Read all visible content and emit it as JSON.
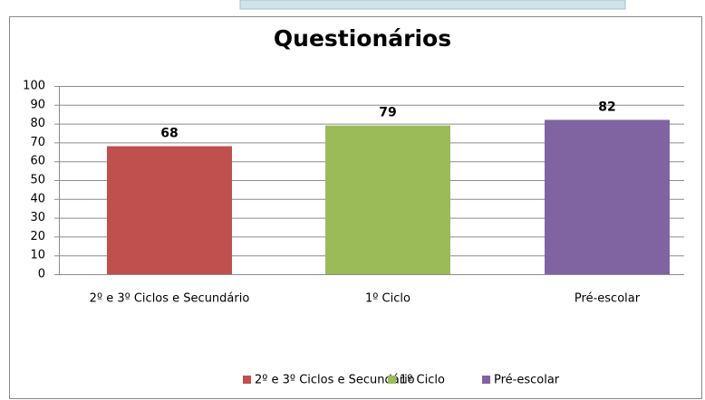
{
  "chart_data": {
    "type": "bar",
    "title": "Questionários",
    "categories": [
      "2º e 3º Ciclos e Secundário",
      "1º Ciclo",
      "Pré-escolar"
    ],
    "values": [
      68,
      79,
      82
    ],
    "colors": [
      "#c0504d",
      "#9bbb59",
      "#8064a2"
    ],
    "ylim": [
      0,
      100
    ],
    "yticks": [
      0,
      10,
      20,
      30,
      40,
      50,
      60,
      70,
      80,
      90,
      100
    ],
    "grid": true,
    "data_labels": true,
    "legend": "bottom"
  }
}
